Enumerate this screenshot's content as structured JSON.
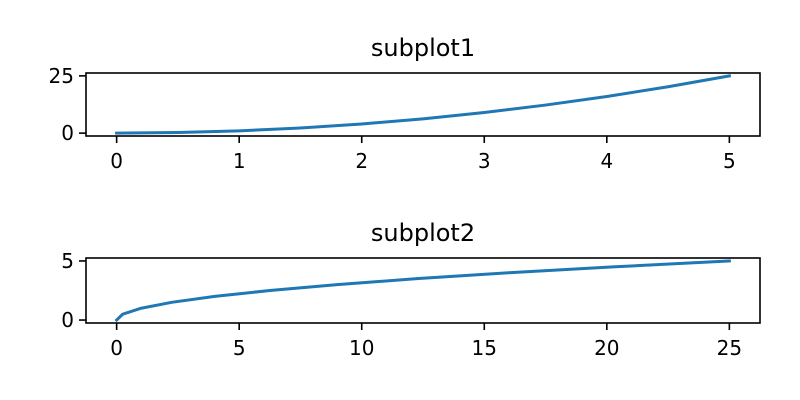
{
  "chart_data": [
    {
      "type": "line",
      "title": "subplot1",
      "xlabel": "",
      "ylabel": "",
      "xlim": [
        -0.25,
        5.25
      ],
      "ylim": [
        -1.25,
        26.25
      ],
      "xticks": [
        0,
        1,
        2,
        3,
        4,
        5
      ],
      "xtick_labels": [
        "0",
        "1",
        "2",
        "3",
        "4",
        "5"
      ],
      "yticks": [
        0,
        25
      ],
      "ytick_labels": [
        "0",
        "25"
      ],
      "grid": false,
      "color": "#1f77b4",
      "series": [
        {
          "x": [
            0,
            0.5,
            1,
            1.5,
            2,
            2.5,
            3,
            3.5,
            4,
            4.5,
            5
          ],
          "y": [
            0,
            0.25,
            1,
            2.25,
            4,
            6.25,
            9,
            12.25,
            16,
            20.25,
            25
          ]
        }
      ]
    },
    {
      "type": "line",
      "title": "subplot2",
      "xlabel": "",
      "ylabel": "",
      "xlim": [
        -1.25,
        26.25
      ],
      "ylim": [
        -0.25,
        5.25
      ],
      "xticks": [
        0,
        5,
        10,
        15,
        20,
        25
      ],
      "xtick_labels": [
        "0",
        "5",
        "10",
        "15",
        "20",
        "25"
      ],
      "yticks": [
        0,
        5
      ],
      "ytick_labels": [
        "0",
        "5"
      ],
      "grid": false,
      "color": "#1f77b4",
      "series": [
        {
          "x": [
            0,
            0.25,
            1,
            2.25,
            4,
            6.25,
            9,
            12.25,
            16,
            20.25,
            25
          ],
          "y": [
            0,
            0.5,
            1,
            1.5,
            2,
            2.5,
            3,
            3.5,
            4,
            4.5,
            5
          ]
        }
      ]
    }
  ]
}
